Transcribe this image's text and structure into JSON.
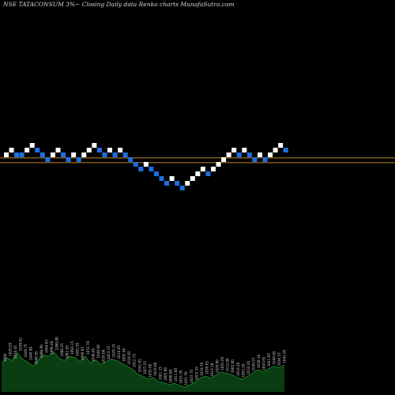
{
  "header": {
    "title": "NSE TATACONSUM 3%~  Closing Daily data  Renko  charts MunafaSutra.com"
  },
  "colors": {
    "up_brick": "#ffffff",
    "down_brick": "#1e6fe0",
    "level_line": "#b8862b",
    "volume_area": "#0a3d12",
    "volume_line": "#1f8a2a",
    "label_text": "#cfcfcf"
  },
  "chart_data": {
    "type": "renko",
    "title": "NSE TATACONSUM 3%~ Closing Daily data Renko charts MunafaSutra.com",
    "brick_size": "3%",
    "grid": false,
    "bricks": [
      {
        "dir": "up",
        "level": 1
      },
      {
        "dir": "up",
        "level": 2
      },
      {
        "dir": "down",
        "level": 1
      },
      {
        "dir": "down",
        "level": 1
      },
      {
        "dir": "up",
        "level": 2
      },
      {
        "dir": "up",
        "level": 3
      },
      {
        "dir": "down",
        "level": 2
      },
      {
        "dir": "down",
        "level": 1
      },
      {
        "dir": "down",
        "level": 0
      },
      {
        "dir": "up",
        "level": 1
      },
      {
        "dir": "up",
        "level": 2
      },
      {
        "dir": "down",
        "level": 1
      },
      {
        "dir": "down",
        "level": 0
      },
      {
        "dir": "up",
        "level": 1
      },
      {
        "dir": "down",
        "level": 0
      },
      {
        "dir": "up",
        "level": 1
      },
      {
        "dir": "up",
        "level": 2
      },
      {
        "dir": "up",
        "level": 3
      },
      {
        "dir": "down",
        "level": 2
      },
      {
        "dir": "down",
        "level": 1
      },
      {
        "dir": "up",
        "level": 2
      },
      {
        "dir": "down",
        "level": 1
      },
      {
        "dir": "up",
        "level": 2
      },
      {
        "dir": "down",
        "level": 1
      },
      {
        "dir": "down",
        "level": 0
      },
      {
        "dir": "down",
        "level": -1
      },
      {
        "dir": "down",
        "level": -2
      },
      {
        "dir": "up",
        "level": -1
      },
      {
        "dir": "down",
        "level": -2
      },
      {
        "dir": "down",
        "level": -3
      },
      {
        "dir": "down",
        "level": -4
      },
      {
        "dir": "down",
        "level": -5
      },
      {
        "dir": "up",
        "level": -4
      },
      {
        "dir": "down",
        "level": -5
      },
      {
        "dir": "down",
        "level": -6
      },
      {
        "dir": "up",
        "level": -5
      },
      {
        "dir": "up",
        "level": -4
      },
      {
        "dir": "up",
        "level": -3
      },
      {
        "dir": "up",
        "level": -2
      },
      {
        "dir": "down",
        "level": -3
      },
      {
        "dir": "up",
        "level": -2
      },
      {
        "dir": "up",
        "level": -1
      },
      {
        "dir": "up",
        "level": 0
      },
      {
        "dir": "up",
        "level": 1
      },
      {
        "dir": "up",
        "level": 2
      },
      {
        "dir": "down",
        "level": 1
      },
      {
        "dir": "up",
        "level": 2
      },
      {
        "dir": "down",
        "level": 1
      },
      {
        "dir": "down",
        "level": 0
      },
      {
        "dir": "up",
        "level": 1
      },
      {
        "dir": "down",
        "level": 0
      },
      {
        "dir": "up",
        "level": 1
      },
      {
        "dir": "up",
        "level": 2
      },
      {
        "dir": "up",
        "level": 3
      },
      {
        "dir": "down",
        "level": 2
      }
    ],
    "reference_levels": [
      0.85,
      -0.15
    ],
    "volume_series": [
      40,
      48,
      44,
      55,
      46,
      42,
      36,
      45,
      52,
      50,
      56,
      47,
      44,
      50,
      48,
      42,
      50,
      40,
      45,
      38,
      43,
      46,
      44,
      40,
      36,
      32,
      25,
      22,
      18,
      20,
      14,
      13,
      10,
      12,
      9,
      7,
      10,
      14,
      20,
      22,
      19,
      24,
      28,
      26,
      24,
      20,
      18,
      22,
      27,
      31,
      28,
      33,
      36,
      34,
      38
    ],
    "price_labels": [
      "1000",
      "1020.05",
      "1020.45",
      "1036.62",
      "1049.75",
      "1046.90",
      "1046.95",
      "1088.00",
      "1094.05",
      "1096.40",
      "1090.00",
      "1088.25",
      "1092.95",
      "1093.15",
      "1091.95",
      "1069.95",
      "1051.70",
      "1048.85",
      "1040.00",
      "1035.00",
      "1023.15",
      "1020.25",
      "1010.05",
      "1005.40",
      "1016.65",
      "1012.75",
      "1041.05",
      "1027.55",
      "1035.00",
      "1010.00",
      "1001.15",
      "1005.90",
      "1000.80",
      "1011.00",
      "1055.35",
      "1051.70",
      "1037.75",
      "1025.35",
      "1019.70",
      "1039.65",
      "1043.10",
      "1029.60",
      "1051.05",
      "1012.00",
      "1005.00",
      "1010.20",
      "1003.20",
      "1033.20",
      "1036.07",
      "1030.10",
      "1043.65",
      "1041.95",
      "1049.65",
      "1036.57",
      "1041.05"
    ]
  }
}
